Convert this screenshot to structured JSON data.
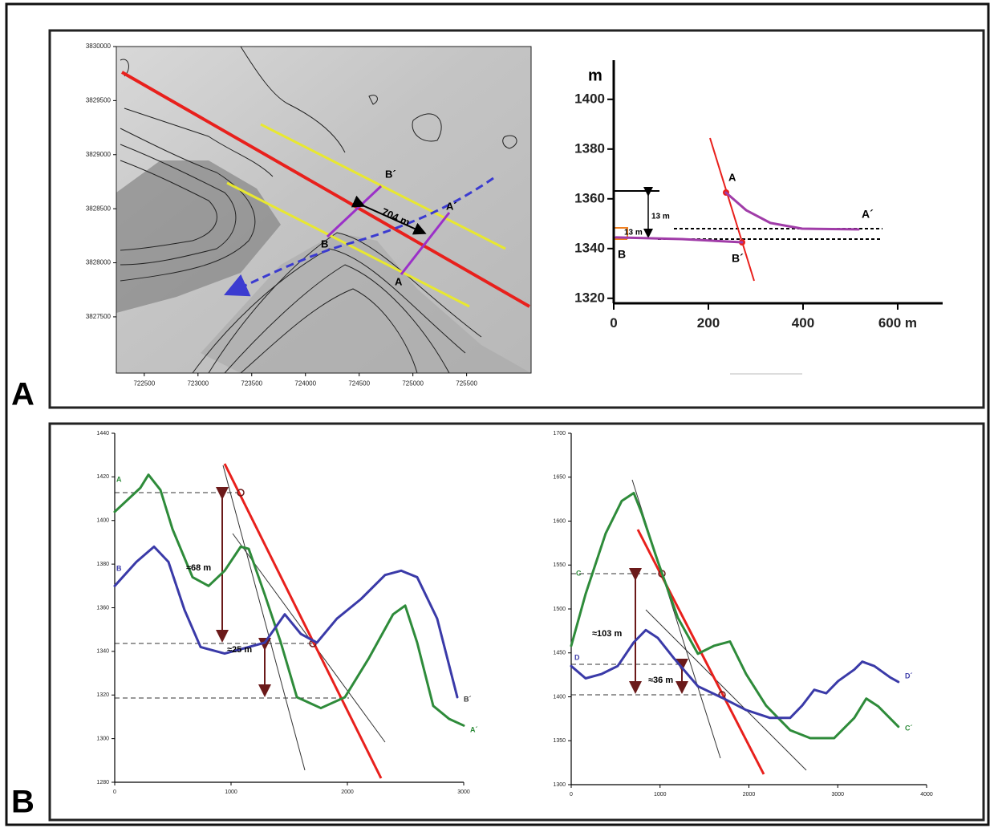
{
  "panel_labels": [
    "A",
    "B"
  ],
  "chart_data": [
    {
      "type": "map",
      "xlim": [
        722240,
        726100
      ],
      "ylim": [
        3826980,
        3830000
      ],
      "xticks": [
        722500,
        723000,
        723500,
        724000,
        724500,
        725000,
        725500
      ],
      "yticks": [
        3827500,
        3828000,
        3828500,
        3829000,
        3829500,
        3830000
      ],
      "annotations": [
        "B´",
        "B",
        "A´",
        "A",
        "704 m"
      ]
    },
    {
      "type": "line",
      "ylabel": "m",
      "xlim": [
        0,
        695
      ],
      "ylim": [
        1318,
        1418
      ],
      "xticks": [
        0,
        200,
        400,
        {
          "value": 600,
          "label": "600 m"
        }
      ],
      "yticks": [
        1320,
        1340,
        1360,
        1380,
        1400
      ],
      "series": [
        {
          "color": "#a03ca8",
          "x": [
            237,
            280,
            331,
            398,
            517
          ],
          "values": [
            1362.5,
            1355.4,
            1350.3,
            1348,
            1347.7
          ]
        },
        {
          "color": "#a03ca8",
          "x": [
            5,
            144,
            271
          ],
          "values": [
            1344.5,
            1343.8,
            1342.5
          ]
        }
      ],
      "annotations": [
        "A",
        "A´",
        "B",
        "B´",
        "13 m",
        "13 m"
      ]
    },
    {
      "type": "line",
      "xlim": [
        0,
        3000
      ],
      "ylim": [
        1280,
        1440
      ],
      "xticks": [
        0,
        1000,
        2000,
        3000
      ],
      "yticks": [
        1280,
        1300,
        1320,
        1340,
        1360,
        1380,
        1400,
        1420,
        1440
      ],
      "series": [
        {
          "color": "#2e8b3a",
          "x": [
            0,
            221,
            290,
            393,
            497,
            669,
            807,
            945,
            1083,
            1152,
            1290,
            1428,
            1566,
            1772,
            1979,
            2186,
            2393,
            2497,
            2600,
            2738,
            2876,
            3000
          ],
          "values": [
            1404,
            1415,
            1421,
            1414,
            1396,
            1374,
            1370,
            1377,
            1388,
            1387,
            1366,
            1344,
            1319,
            1314,
            1319,
            1337,
            1357,
            1361,
            1344,
            1315,
            1309,
            1306
          ]
        },
        {
          "color": "#3a3aa8",
          "x": [
            0,
            186,
            338,
            462,
            600,
            738,
            945,
            1083,
            1290,
            1462,
            1600,
            1738,
            1910,
            2117,
            2324,
            2462,
            2600,
            2772,
            2945
          ],
          "values": [
            1370,
            1381,
            1388,
            1381,
            1359,
            1342,
            1339,
            1341,
            1344,
            1357,
            1348,
            1344,
            1355,
            1364,
            1375,
            1377,
            1374,
            1355,
            1319
          ]
        }
      ],
      "annotations": [
        "A",
        "B",
        "B´",
        "A´",
        "≈68 m",
        "≈25 m"
      ]
    },
    {
      "type": "line",
      "xlim": [
        0,
        4000
      ],
      "ylim": [
        1300,
        1700
      ],
      "xticks": [
        0,
        1000,
        2000,
        3000,
        4000
      ],
      "yticks": [
        1300,
        1350,
        1400,
        1450,
        1500,
        1550,
        1600,
        1650,
        1700
      ],
      "series": [
        {
          "color": "#2e8b3a",
          "x": [
            0,
            162,
            388,
            569,
            704,
            794,
            975,
            1200,
            1426,
            1606,
            1787,
            1968,
            2193,
            2464,
            2690,
            2960,
            3186,
            3321,
            3457,
            3682
          ],
          "values": [
            1458,
            1517,
            1586,
            1623,
            1632,
            1609,
            1554,
            1490,
            1449,
            1458,
            1463,
            1426,
            1390,
            1362,
            1353,
            1353,
            1376,
            1398,
            1389,
            1366
          ]
        },
        {
          "color": "#3a3aa8",
          "x": [
            0,
            162,
            343,
            523,
            704,
            839,
            975,
            1155,
            1426,
            1697,
            1968,
            2238,
            2464,
            2599,
            2735,
            2870,
            3005,
            3186,
            3276,
            3412,
            3592,
            3682
          ],
          "values": [
            1435,
            1421,
            1426,
            1435,
            1462,
            1476,
            1467,
            1444,
            1412,
            1399,
            1385,
            1376,
            1376,
            1390,
            1408,
            1404,
            1418,
            1431,
            1440,
            1435,
            1422,
            1417
          ]
        }
      ],
      "annotations": [
        "C",
        "D",
        "D´",
        "C´",
        "≈103 m",
        "≈36 m"
      ]
    }
  ]
}
